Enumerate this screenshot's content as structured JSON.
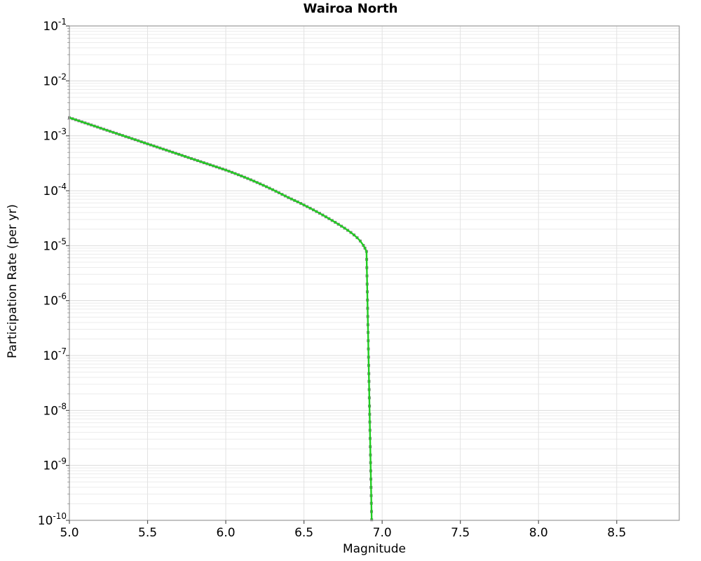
{
  "chart_data": {
    "type": "line",
    "title": "Wairoa North",
    "xlabel": "Magnitude",
    "ylabel": "Participation Rate (per yr)",
    "x_axis": {
      "min": 5.0,
      "max": 8.9,
      "tick_values": [
        5.0,
        5.5,
        6.0,
        6.5,
        7.0,
        7.5,
        8.0,
        8.5
      ],
      "tick_labels": [
        "5.0",
        "5.5",
        "6.0",
        "6.5",
        "7.0",
        "7.5",
        "8.0",
        "8.5"
      ]
    },
    "y_axis": {
      "scale": "log",
      "min": 1e-10,
      "max": 0.1,
      "tick_exponents": [
        -1,
        -2,
        -3,
        -4,
        -5,
        -6,
        -7,
        -8,
        -9,
        -10
      ],
      "tick_base": "10"
    },
    "grid": {
      "vertical_major": true,
      "horizontal_major": true,
      "horizontal_log_minor": true
    },
    "colors": {
      "line": "#21cc21",
      "marker": "#6f6f6f",
      "grid_major": "#dcdcdc",
      "grid_minor": "#ececec",
      "grid_vertical": "#e2e2e2",
      "border": "#9a9a9a",
      "tick": "#555555",
      "text": "#000000"
    },
    "series": [
      {
        "name": "participation-rate",
        "marker": "square",
        "point_format": [
          "magnitude",
          "log10_rate_per_yr"
        ],
        "points": [
          [
            5.0,
            -2.67
          ],
          [
            5.02,
            -2.689
          ],
          [
            5.04,
            -2.708
          ],
          [
            5.06,
            -2.727
          ],
          [
            5.08,
            -2.746
          ],
          [
            5.1,
            -2.765
          ],
          [
            5.12,
            -2.784
          ],
          [
            5.14,
            -2.803
          ],
          [
            5.16,
            -2.822
          ],
          [
            5.18,
            -2.841
          ],
          [
            5.2,
            -2.861
          ],
          [
            5.22,
            -2.88
          ],
          [
            5.24,
            -2.899
          ],
          [
            5.26,
            -2.918
          ],
          [
            5.28,
            -2.937
          ],
          [
            5.3,
            -2.956
          ],
          [
            5.32,
            -2.975
          ],
          [
            5.34,
            -2.994
          ],
          [
            5.36,
            -3.013
          ],
          [
            5.38,
            -3.032
          ],
          [
            5.4,
            -3.051
          ],
          [
            5.42,
            -3.07
          ],
          [
            5.44,
            -3.089
          ],
          [
            5.46,
            -3.109
          ],
          [
            5.48,
            -3.128
          ],
          [
            5.5,
            -3.147
          ],
          [
            5.52,
            -3.166
          ],
          [
            5.54,
            -3.185
          ],
          [
            5.56,
            -3.204
          ],
          [
            5.58,
            -3.223
          ],
          [
            5.6,
            -3.242
          ],
          [
            5.62,
            -3.261
          ],
          [
            5.64,
            -3.28
          ],
          [
            5.66,
            -3.299
          ],
          [
            5.68,
            -3.318
          ],
          [
            5.7,
            -3.337
          ],
          [
            5.72,
            -3.356
          ],
          [
            5.74,
            -3.376
          ],
          [
            5.76,
            -3.395
          ],
          [
            5.78,
            -3.414
          ],
          [
            5.8,
            -3.433
          ],
          [
            5.82,
            -3.452
          ],
          [
            5.84,
            -3.471
          ],
          [
            5.86,
            -3.49
          ],
          [
            5.88,
            -3.509
          ],
          [
            5.9,
            -3.528
          ],
          [
            5.92,
            -3.547
          ],
          [
            5.94,
            -3.566
          ],
          [
            5.96,
            -3.585
          ],
          [
            5.98,
            -3.604
          ],
          [
            6.0,
            -3.623
          ],
          [
            6.02,
            -3.644
          ],
          [
            6.04,
            -3.665
          ],
          [
            6.06,
            -3.687
          ],
          [
            6.08,
            -3.709
          ],
          [
            6.1,
            -3.731
          ],
          [
            6.12,
            -3.754
          ],
          [
            6.14,
            -3.777
          ],
          [
            6.16,
            -3.801
          ],
          [
            6.18,
            -3.825
          ],
          [
            6.2,
            -3.85
          ],
          [
            6.22,
            -3.875
          ],
          [
            6.24,
            -3.901
          ],
          [
            6.26,
            -3.927
          ],
          [
            6.28,
            -3.954
          ],
          [
            6.3,
            -3.981
          ],
          [
            6.32,
            -4.009
          ],
          [
            6.34,
            -4.037
          ],
          [
            6.36,
            -4.066
          ],
          [
            6.38,
            -4.095
          ],
          [
            6.4,
            -4.124
          ],
          [
            6.42,
            -4.15
          ],
          [
            6.44,
            -4.177
          ],
          [
            6.46,
            -4.203
          ],
          [
            6.48,
            -4.231
          ],
          [
            6.5,
            -4.26
          ],
          [
            6.52,
            -4.289
          ],
          [
            6.54,
            -4.318
          ],
          [
            6.56,
            -4.348
          ],
          [
            6.58,
            -4.379
          ],
          [
            6.6,
            -4.41
          ],
          [
            6.62,
            -4.442
          ],
          [
            6.64,
            -4.475
          ],
          [
            6.66,
            -4.508
          ],
          [
            6.68,
            -4.541
          ],
          [
            6.7,
            -4.575
          ],
          [
            6.72,
            -4.61
          ],
          [
            6.74,
            -4.645
          ],
          [
            6.76,
            -4.682
          ],
          [
            6.78,
            -4.72
          ],
          [
            6.8,
            -4.76
          ],
          [
            6.82,
            -4.805
          ],
          [
            6.84,
            -4.855
          ],
          [
            6.86,
            -4.915
          ],
          [
            6.88,
            -4.995
          ],
          [
            6.89,
            -5.045
          ],
          [
            6.9,
            -5.105
          ],
          [
            6.901,
            -5.25
          ],
          [
            6.902,
            -5.4
          ],
          [
            6.903,
            -5.55
          ],
          [
            6.904,
            -5.7
          ],
          [
            6.905,
            -5.84
          ],
          [
            6.906,
            -5.99
          ],
          [
            6.907,
            -6.14
          ],
          [
            6.908,
            -6.29
          ],
          [
            6.909,
            -6.44
          ],
          [
            6.91,
            -6.58
          ],
          [
            6.911,
            -6.73
          ],
          [
            6.912,
            -6.88
          ],
          [
            6.913,
            -7.03
          ],
          [
            6.914,
            -7.18
          ],
          [
            6.915,
            -7.33
          ],
          [
            6.916,
            -7.47
          ],
          [
            6.917,
            -7.62
          ],
          [
            6.918,
            -7.77
          ],
          [
            6.919,
            -7.92
          ],
          [
            6.92,
            -8.07
          ],
          [
            6.921,
            -8.21
          ],
          [
            6.922,
            -8.36
          ],
          [
            6.923,
            -8.51
          ],
          [
            6.924,
            -8.66
          ],
          [
            6.925,
            -8.81
          ],
          [
            6.926,
            -8.95
          ],
          [
            6.927,
            -9.1
          ],
          [
            6.928,
            -9.25
          ],
          [
            6.929,
            -9.4
          ],
          [
            6.93,
            -9.55
          ],
          [
            6.931,
            -9.69
          ],
          [
            6.932,
            -9.84
          ],
          [
            6.933,
            -9.99
          ]
        ]
      }
    ]
  }
}
